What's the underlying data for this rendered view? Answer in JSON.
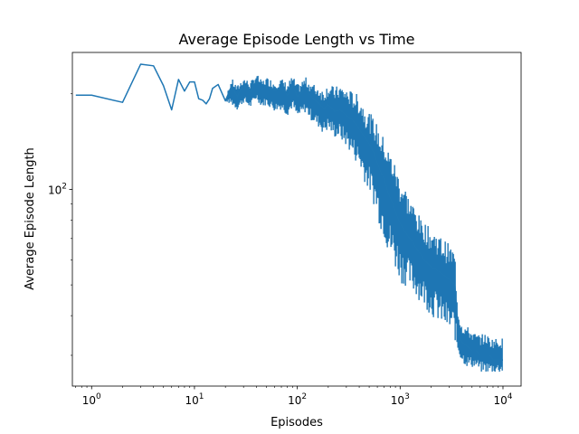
{
  "chart_data": {
    "type": "line",
    "title": "Average Episode Length vs Time",
    "xlabel": "Episodes",
    "ylabel": "Average Episode Length",
    "x_scale": "log",
    "y_scale": "log",
    "xlim": [
      0.65,
      15000
    ],
    "ylim": [
      24,
      270
    ],
    "grid": false,
    "legend": "none",
    "x_ticks": [
      {
        "value": 1,
        "base": "10",
        "exp": "0"
      },
      {
        "value": 10,
        "base": "10",
        "exp": "1"
      },
      {
        "value": 100,
        "base": "10",
        "exp": "2"
      },
      {
        "value": 1000,
        "base": "10",
        "exp": "3"
      },
      {
        "value": 10000,
        "base": "10",
        "exp": "4"
      }
    ],
    "y_ticks": [
      {
        "value": 100,
        "base": "10",
        "exp": "2"
      }
    ],
    "series": [
      {
        "color": "#1f77b4",
        "x": [
          0,
          1,
          2,
          3,
          4,
          5,
          6,
          7,
          8,
          9,
          10,
          11,
          12,
          13,
          14,
          15,
          17,
          20,
          23,
          26,
          30,
          35,
          40,
          45,
          50,
          60,
          70,
          80,
          90,
          100,
          120,
          140,
          160,
          180,
          200,
          230,
          260,
          300,
          340,
          380,
          420,
          460,
          500,
          550,
          600,
          650,
          700,
          750,
          800,
          850,
          900,
          950,
          1000,
          1100,
          1200,
          1300,
          1400,
          1500,
          1600,
          1700,
          1800,
          1900,
          2000,
          2200,
          2400,
          2600,
          2800,
          3000,
          3200,
          3400,
          3600,
          3800,
          4000,
          4500,
          5000,
          5500,
          6000,
          6500,
          7000,
          7500,
          8000,
          8500,
          9000,
          9500,
          10000
        ],
        "y": [
          198,
          198,
          188,
          248,
          245,
          212,
          178,
          222,
          204,
          218,
          218,
          193,
          191,
          186,
          193,
          208,
          214,
          190,
          212,
          196,
          214,
          202,
          220,
          206,
          212,
          204,
          208,
          198,
          212,
          196,
          208,
          194,
          187,
          180,
          185,
          176,
          178,
          171,
          166,
          159,
          151,
          145,
          139,
          131,
          121,
          113,
          108,
          99,
          94,
          90,
          85,
          81,
          78,
          74,
          71,
          69,
          66,
          64,
          62,
          60,
          59,
          58,
          57,
          56,
          55,
          54,
          53,
          52,
          51,
          50,
          38,
          34,
          33,
          32,
          31,
          31,
          30,
          30,
          30,
          30,
          29,
          29,
          29,
          29,
          29
        ],
        "y_low": [
          198,
          198,
          188,
          248,
          245,
          212,
          178,
          222,
          204,
          218,
          218,
          193,
          191,
          186,
          193,
          208,
          214,
          190,
          182,
          176,
          185,
          178,
          190,
          180,
          182,
          174,
          176,
          168,
          178,
          164,
          172,
          160,
          154,
          146,
          150,
          142,
          140,
          132,
          124,
          116,
          108,
          100,
          94,
          86,
          78,
          70,
          66,
          60,
          56,
          54,
          52,
          50,
          48,
          47,
          46,
          45,
          44,
          43,
          42,
          41,
          40,
          39,
          38,
          37,
          36,
          35,
          34,
          33,
          33,
          32,
          30,
          29,
          28,
          27,
          27,
          27,
          26,
          26,
          26,
          26,
          26,
          26,
          26,
          26,
          26
        ],
        "y_high": [
          198,
          198,
          188,
          248,
          245,
          212,
          178,
          222,
          204,
          218,
          218,
          193,
          191,
          186,
          193,
          208,
          214,
          190,
          224,
          212,
          226,
          218,
          232,
          220,
          226,
          220,
          224,
          216,
          228,
          214,
          226,
          216,
          212,
          206,
          216,
          210,
          214,
          208,
          204,
          200,
          192,
          180,
          176,
          168,
          160,
          150,
          146,
          136,
          132,
          126,
          120,
          114,
          108,
          104,
          96,
          92,
          88,
          84,
          80,
          80,
          78,
          76,
          75,
          74,
          72,
          70,
          69,
          67,
          66,
          64,
          44,
          40,
          38,
          37,
          36,
          35,
          35,
          35,
          35,
          34,
          34,
          34,
          34,
          34,
          34
        ]
      }
    ]
  }
}
